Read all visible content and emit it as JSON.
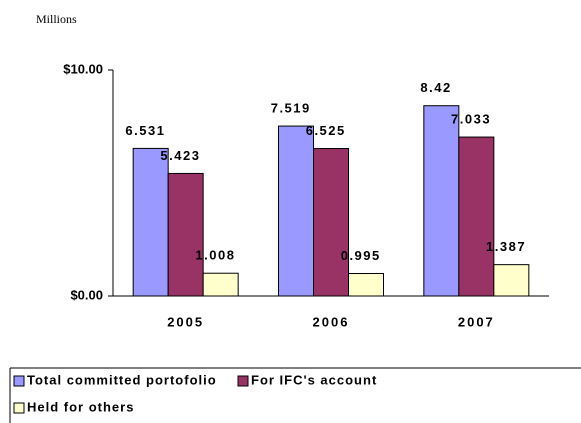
{
  "chart_data": {
    "type": "bar",
    "subtitle": "Millions",
    "categories": [
      "2005",
      "2006",
      "2007"
    ],
    "series": [
      {
        "name": "Total committed portofolio",
        "color": "#9999ff",
        "values": [
          6.531,
          7.519,
          8.42
        ]
      },
      {
        "name": "For IFC's account",
        "color": "#993366",
        "values": [
          5.423,
          6.525,
          7.033
        ]
      },
      {
        "name": "Held for others",
        "color": "#ffffcc",
        "values": [
          1.008,
          0.995,
          1.387
        ]
      }
    ],
    "ylim": [
      0,
      10
    ],
    "yticks": [
      {
        "value": 0,
        "label": "$0.00"
      },
      {
        "value": 10,
        "label": "$10.00"
      }
    ],
    "legend": "bottom"
  }
}
